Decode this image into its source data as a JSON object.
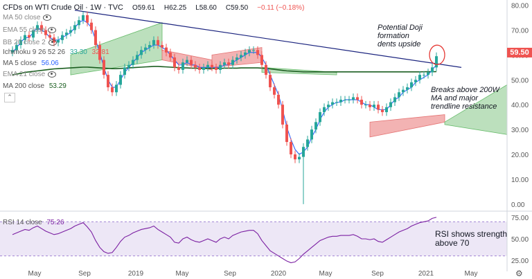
{
  "header": {
    "symbol": "CFDs on WTI Crude Oil · 1W · TVC",
    "open": "O59.61",
    "high": "H62.25",
    "low": "L58.60",
    "close": "C59.50",
    "change": "−0.11 (−0.18%)"
  },
  "indicators": {
    "ma50": "MA 50 close",
    "ema55": "EMA 55 close",
    "bb": "BB 20 close 2",
    "ichimoku_label": "Ichimoku 9 26 52 26",
    "ichimoku_a": "33.30",
    "ichimoku_b": "32.81",
    "ma5_label": "MA 5 close",
    "ma5_value": "56.06",
    "ema21": "EMA 21 close",
    "ma200_label": "MA 200 close",
    "ma200_value": "53.29",
    "rsi_label": "RSI 14 close",
    "rsi_value": "75.26"
  },
  "annotations": {
    "doji_1": "Potential Doji",
    "doji_2": "formation",
    "doji_3": "dents upside",
    "break_1": "Breaks above 200W",
    "break_2": "MA and major",
    "break_3": "trendline resistance",
    "rsi_1": "RSI shows strength",
    "rsi_2": "above 70"
  },
  "price_tag": "59.50",
  "colors": {
    "up": "#26a69a",
    "down": "#ef5350",
    "ma5": "#2962ff",
    "ma200": "#1b5e20",
    "trendline": "#1a237e",
    "cloud_bull": "#a5d6a7",
    "cloud_bear": "#ef9a9a",
    "rsi_line": "#7b1fa2",
    "rsi_band": "#ede7f6",
    "tag": "#ef5350"
  },
  "chart_data": {
    "type": "candlestick",
    "y_axis": {
      "ticks": [
        "80.00",
        "70.00",
        "60.00",
        "50.00",
        "40.00",
        "30.00",
        "20.00",
        "10.00",
        "0.00"
      ],
      "range": [
        -2,
        81
      ]
    },
    "x_axis": {
      "ticks": [
        "May",
        "Sep",
        "2019",
        "May",
        "Sep",
        "2020",
        "May",
        "Sep",
        "2021",
        "May"
      ]
    },
    "rsi_axis": {
      "ticks": [
        "75.00",
        "50.00",
        "25.00"
      ],
      "range": [
        20,
        80
      ]
    },
    "period_start": "2018-03",
    "period_end": "2021-02",
    "closes": [
      62,
      64,
      66,
      68,
      67,
      70,
      72,
      70,
      68,
      67,
      65,
      66,
      68,
      69,
      70,
      72,
      74,
      76,
      73,
      70,
      64,
      58,
      52,
      47,
      45,
      48,
      52,
      55,
      56,
      58,
      60,
      62,
      63,
      64,
      66,
      64,
      63,
      61,
      59,
      55,
      54,
      57,
      58,
      56,
      55,
      54,
      55,
      56,
      55,
      54,
      56,
      57,
      56,
      58,
      59,
      60,
      61,
      62,
      62,
      60,
      56,
      52,
      47,
      44,
      40,
      32,
      25,
      20,
      18,
      19,
      23,
      26,
      30,
      33,
      37,
      39,
      40,
      41,
      41,
      42,
      42,
      42,
      43,
      42,
      40,
      40,
      39,
      40,
      38,
      37,
      39,
      41,
      43,
      45,
      46,
      47,
      49,
      50,
      52,
      52,
      53,
      55,
      59.5
    ],
    "special_bars": [
      {
        "index": 70,
        "low": 0
      }
    ],
    "ma5": [
      61,
      63,
      65,
      67,
      67,
      69,
      71,
      70,
      69,
      67,
      66,
      66,
      67,
      68,
      69,
      71,
      73,
      74,
      73,
      71,
      66,
      61,
      55,
      50,
      47,
      47,
      50,
      53,
      55,
      57,
      59,
      61,
      62,
      63,
      64,
      64,
      63,
      62,
      60,
      58,
      56,
      56,
      57,
      56,
      56,
      55,
      55,
      55,
      55,
      55,
      55,
      56,
      56,
      57,
      58,
      59,
      60,
      61,
      61,
      61,
      59,
      56,
      52,
      48,
      44,
      38,
      31,
      26,
      22,
      20,
      21,
      23,
      27,
      30,
      34,
      37,
      39,
      40,
      41,
      41,
      42,
      42,
      42,
      42,
      41,
      40,
      40,
      39,
      38,
      38,
      38,
      40,
      42,
      43,
      45,
      46,
      47,
      49,
      50,
      51,
      52,
      54,
      56.06
    ],
    "ma200": [
      52,
      52.3,
      52.6,
      53,
      53.2,
      53.4,
      53.6,
      53.8,
      54,
      54.2,
      54.4,
      54.5,
      54.6,
      54.7,
      54.8,
      54.9,
      55,
      55.1,
      55.1,
      55,
      54.9,
      54.8,
      54.7,
      54.6,
      54.5,
      54.5,
      54.6,
      54.7,
      54.8,
      54.9,
      55,
      55.1,
      55.2,
      55.3,
      55.4,
      55.4,
      55.3,
      55.2,
      55.1,
      55,
      54.9,
      54.8,
      54.8,
      54.7,
      54.7,
      54.6,
      54.6,
      54.6,
      54.6,
      54.6,
      54.6,
      54.7,
      54.7,
      54.7,
      54.7,
      54.8,
      54.8,
      54.8,
      54.8,
      54.8,
      54.7,
      54.6,
      54.4,
      54.2,
      54,
      53.8,
      53.6,
      53.5,
      53.4,
      53.3,
      53.2,
      53.2,
      53.2,
      53.2,
      53.2,
      53.2,
      53.2,
      53.2,
      53.2,
      53.2,
      53.2,
      53.2,
      53.2,
      53.2,
      53.2,
      53.2,
      53.2,
      53.2,
      53.2,
      53.2,
      53.2,
      53.2,
      53.2,
      53.2,
      53.2,
      53.2,
      53.2,
      53.2,
      53.2,
      53.25,
      53.27,
      53.28,
      53.29
    ],
    "trendline": [
      [
        15,
        78
      ],
      [
        108,
        55
      ]
    ],
    "cloud": [
      {
        "from": 14,
        "to": 36,
        "top_start": 60,
        "top_end": 73,
        "bottom_start": 52,
        "bottom_end": 58,
        "kind": "bull"
      },
      {
        "from": 36,
        "to": 48,
        "top_start": 62,
        "top_end": 58,
        "bottom_start": 58,
        "bottom_end": 54,
        "kind": "bear"
      },
      {
        "from": 48,
        "to": 60,
        "top_start": 60,
        "top_end": 63,
        "bottom_start": 55,
        "bottom_end": 57,
        "kind": "bear"
      },
      {
        "from": 60,
        "to": 78,
        "top_start": 55,
        "top_end": 53,
        "bottom_start": 53,
        "bottom_end": 52,
        "kind": "bull"
      },
      {
        "from": 86,
        "to": 104,
        "top_start": 33,
        "top_end": 36,
        "bottom_start": 27,
        "bottom_end": 33,
        "kind": "bear"
      },
      {
        "from": 104,
        "to": 130,
        "top_start": 33,
        "top_end": 48,
        "bottom_start": 32,
        "bottom_end": 28,
        "kind": "bull"
      }
    ],
    "rsi": [
      55,
      57,
      59,
      61,
      60,
      63,
      65,
      62,
      59,
      57,
      55,
      56,
      58,
      60,
      62,
      65,
      67,
      69,
      64,
      58,
      48,
      40,
      35,
      33,
      34,
      40,
      47,
      52,
      54,
      57,
      59,
      61,
      62,
      63,
      65,
      61,
      58,
      55,
      52,
      46,
      45,
      50,
      52,
      49,
      47,
      46,
      48,
      50,
      48,
      46,
      50,
      52,
      50,
      54,
      56,
      58,
      59,
      60,
      60,
      56,
      48,
      42,
      36,
      33,
      30,
      27,
      24,
      22,
      23,
      27,
      32,
      36,
      40,
      44,
      48,
      50,
      52,
      53,
      53,
      54,
      54,
      54,
      55,
      53,
      50,
      50,
      49,
      50,
      47,
      46,
      49,
      52,
      55,
      58,
      60,
      62,
      65,
      67,
      69,
      70,
      71,
      74,
      75.26
    ]
  }
}
